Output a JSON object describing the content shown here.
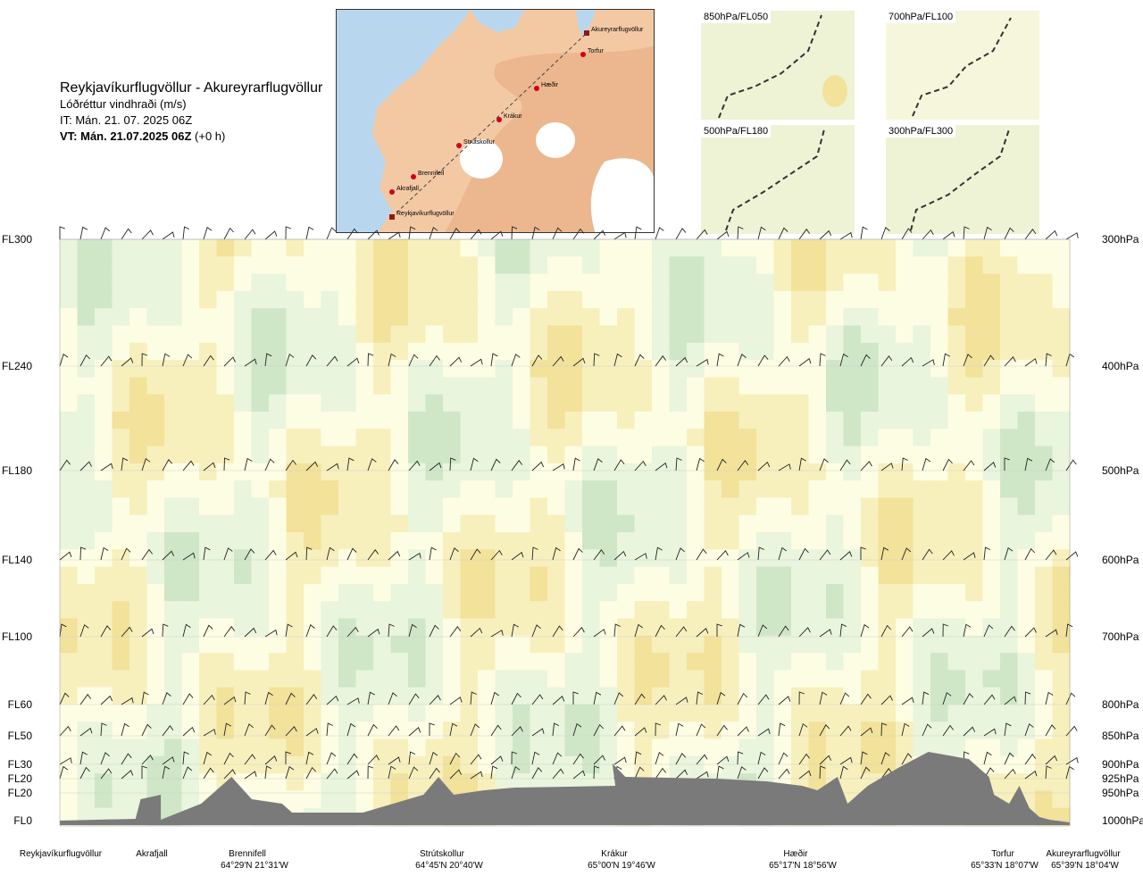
{
  "header": {
    "route_title": "Reykjavíkurflugvöllur - Akureyrarflugvöllur",
    "parameter": "Lóðréttur vindhraði (m/s)",
    "issue_time": "IT: Mán. 21. 07. 2025 06Z",
    "valid_prefix": "VT: Mán. 21.07.2025 06Z",
    "valid_suffix": "(+0 h)"
  },
  "route_map": {
    "places": [
      {
        "name": "Akureyrarflugvöllur",
        "type": "airport"
      },
      {
        "name": "Torfur",
        "type": "waypoint"
      },
      {
        "name": "Hæðir",
        "type": "waypoint"
      },
      {
        "name": "Krákur",
        "type": "waypoint"
      },
      {
        "name": "Strútskollur",
        "type": "waypoint"
      },
      {
        "name": "Brennifell",
        "type": "waypoint"
      },
      {
        "name": "Akrafjall",
        "type": "waypoint"
      },
      {
        "name": "Reykjavíkurflugvöllur",
        "type": "airport"
      }
    ],
    "colors": {
      "sea": "#b8d7ee",
      "land": "#f3c9a4",
      "highland": "#e6a77c",
      "glacier": "#ffffff"
    }
  },
  "level_maps": [
    {
      "label": "850hPa/FL050"
    },
    {
      "label": "700hPa/FL100"
    },
    {
      "label": "500hPa/FL180"
    },
    {
      "label": "300hPa/FL300"
    }
  ],
  "chart_data": {
    "type": "heatmap",
    "title": "Lóðréttur vindhraði (m/s)",
    "y_levels": [
      {
        "fl": "FL300",
        "hpa": "300hPa",
        "value_ft": 30000
      },
      {
        "fl": "FL240",
        "hpa": "400hPa",
        "value_ft": 24000
      },
      {
        "fl": "FL180",
        "hpa": "500hPa",
        "value_ft": 18000
      },
      {
        "fl": "FL140",
        "hpa": "600hPa",
        "value_ft": 14000
      },
      {
        "fl": "FL100",
        "hpa": "700hPa",
        "value_ft": 10000
      },
      {
        "fl": "FL60",
        "hpa": "800hPa",
        "value_ft": 6000
      },
      {
        "fl": "FL50",
        "hpa": "850hPa",
        "value_ft": 5000
      },
      {
        "fl": "FL30",
        "hpa": "900hPa",
        "value_ft": 3000
      },
      {
        "fl": "FL20",
        "hpa": "925hPa",
        "value_ft": 2000
      },
      {
        "fl": "FL20",
        "hpa": "950hPa",
        "value_ft": 2000
      },
      {
        "fl": "FL0",
        "hpa": "1000hPa",
        "value_ft": 0
      }
    ],
    "waypoints": [
      {
        "name": "Reykjavíkurflugvöllur",
        "coord": "",
        "frac": 0.0
      },
      {
        "name": "Akrafjall",
        "coord": "",
        "frac": 0.09
      },
      {
        "name": "Brennifell",
        "coord": "64°29'N 21°31'W",
        "frac": 0.19
      },
      {
        "name": "Strútskollur",
        "coord": "64°45'N 20°40'W",
        "frac": 0.375
      },
      {
        "name": "Krákur",
        "coord": "65°00'N 19°46'W",
        "frac": 0.55
      },
      {
        "name": "Hæðir",
        "coord": "65°17'N 18°56'W",
        "frac": 0.735
      },
      {
        "name": "Torfur",
        "coord": "65°33'N 18°07'W",
        "frac": 0.96
      },
      {
        "name": "Akureyrarflugvöllur",
        "coord": "65°39'N 18°04'W",
        "frac": 1.0
      }
    ],
    "colors": {
      "strong_down": "#f2e29a",
      "weak_down": "#f7f0bd",
      "neutral": "#fdfde3",
      "weak_up": "#e9f5dc",
      "strong_up": "#cfe7c6",
      "terrain": "#7a7a7a"
    },
    "grid": true
  }
}
